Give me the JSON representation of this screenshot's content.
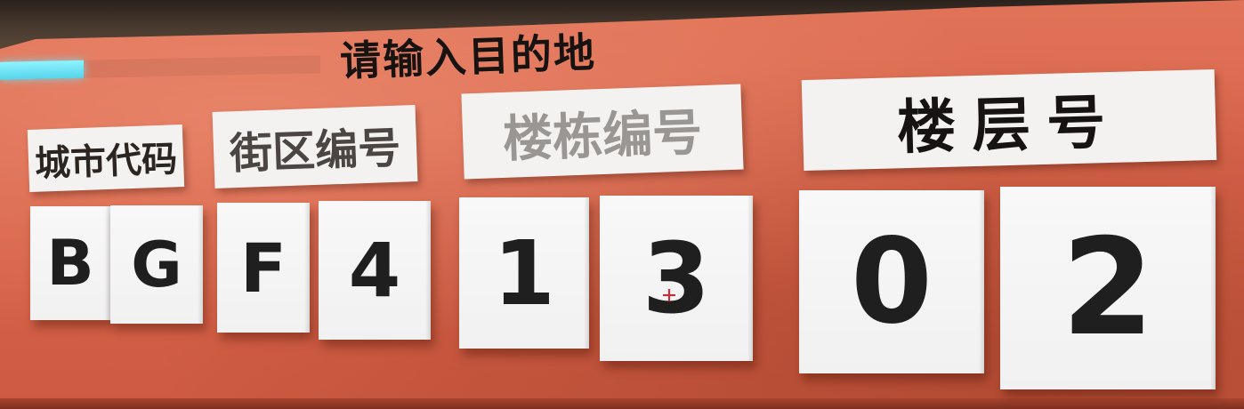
{
  "prompt": "请输入目的地",
  "progress": {
    "value": 0.26,
    "color": "#6fe6f7"
  },
  "headers": [
    {
      "label": "城市代码"
    },
    {
      "label": "街区编号"
    },
    {
      "label": "楼栋编号"
    },
    {
      "label": "楼层号"
    }
  ],
  "digits": [
    "B",
    "G",
    "F",
    "4",
    "1",
    "3",
    "0",
    "2"
  ],
  "colors": {
    "wall": "#d8644a",
    "panel": "#f4f2f0",
    "text": "#1f1f1f",
    "crosshair": "#e4202a"
  },
  "crosshair_icon": "crosshair-icon"
}
